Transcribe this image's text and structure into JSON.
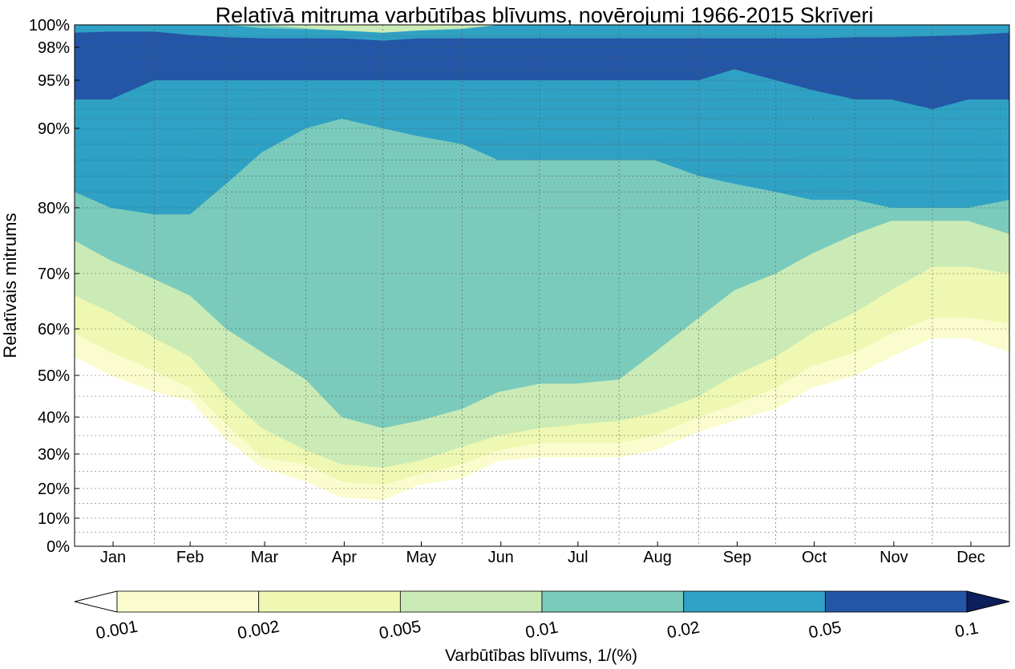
{
  "chart_data": {
    "type": "filled-contour",
    "title": "Relatīvā mitruma varbūtības blīvums, novērojumi 1966-2015 Skrīveri",
    "ylabel": "Relatīvais mitrums",
    "xlabel": "",
    "x_tick_labels": [
      "Jan",
      "Feb",
      "Mar",
      "Apr",
      "May",
      "Jun",
      "Jul",
      "Aug",
      "Sep",
      "Oct",
      "Nov",
      "Dec"
    ],
    "y_tick_labels": [
      "0%",
      "10%",
      "20%",
      "30%",
      "40%",
      "50%",
      "60%",
      "70%",
      "80%",
      "90%",
      "95%",
      "98%",
      "100%"
    ],
    "y_tick_values": [
      0,
      10,
      20,
      30,
      40,
      50,
      60,
      70,
      80,
      90,
      95,
      98,
      100
    ],
    "ylim": [
      0,
      100
    ],
    "y_scale": "nonlinear (stretched toward 100%)",
    "grid": true,
    "levels": [
      0.001,
      0.002,
      0.005,
      0.01,
      0.02,
      0.05,
      0.1
    ],
    "level_labels": [
      "0.001",
      "0.002",
      "0.005",
      "0.01",
      "0.02",
      "0.05",
      "0.1"
    ],
    "colors": [
      "#ffffcc",
      "#edf8b1",
      "#c7e9b4",
      "#7fcdbb",
      "#41b6c4",
      "#1d91c0",
      "#225ea8",
      "#0c2c84"
    ],
    "band_colors": {
      "lt_0.001": "#ffffff",
      "0.001_0.002": "#fafcce",
      "0.002_0.005": "#eef8b2",
      "0.005_0.01": "#cbebb6",
      "0.01_0.02": "#7bcbbc",
      "0.02_0.05": "#2fa1c4",
      "0.05_0.1": "#2356a6",
      "gt_0.1": "#0c1f5c"
    },
    "boundaries_rh_by_day": {
      "day": [
        1,
        15,
        32,
        46,
        60,
        74,
        91,
        105,
        121,
        135,
        152,
        166,
        182,
        196,
        213,
        227,
        244,
        258,
        274,
        288,
        305,
        319,
        335,
        349,
        365
      ],
      "p001_lower": [
        54,
        50,
        46,
        44,
        34,
        26,
        22,
        17,
        16,
        21,
        23,
        28,
        29,
        29,
        29,
        31,
        36,
        39,
        42,
        47,
        50,
        54,
        58,
        58,
        55
      ],
      "p002_lower": [
        59,
        55,
        51,
        47,
        38,
        29,
        27,
        22,
        21,
        24,
        27,
        31,
        33,
        33,
        33,
        35,
        40,
        43,
        47,
        52,
        55,
        59,
        62,
        62,
        61
      ],
      "p005_lower": [
        66,
        63,
        58,
        54,
        45,
        37,
        31,
        27,
        26,
        28,
        32,
        35,
        37,
        38,
        39,
        41,
        45,
        50,
        54,
        59,
        63,
        67,
        71,
        71,
        70
      ],
      "p01_lower": [
        75,
        72,
        69,
        66,
        60,
        55,
        49,
        40,
        37,
        39,
        42,
        46,
        48,
        48,
        49,
        55,
        62,
        67,
        70,
        73,
        76,
        78,
        78,
        78,
        76
      ],
      "p02_lower": [
        82,
        80,
        79,
        79,
        83,
        87,
        90,
        91,
        90,
        89,
        88,
        86,
        86,
        86,
        86,
        86,
        84,
        83,
        82,
        81,
        81,
        80,
        80,
        80,
        81
      ],
      "p05_lower": [
        93,
        93,
        95,
        95,
        95,
        95,
        95,
        95,
        95,
        95,
        95,
        95,
        95,
        95,
        95,
        95,
        95,
        96,
        95,
        94,
        93,
        93,
        92,
        93,
        93
      ],
      "p1_lower": [
        100,
        100,
        100,
        100,
        100,
        100,
        100,
        100,
        100,
        100,
        100,
        100,
        100,
        100,
        100,
        100,
        100,
        99.8,
        99.7,
        99.6,
        99.5,
        99.4,
        99.4,
        99.5,
        99.8
      ],
      "p05_upper": [
        99.6,
        99.6,
        99.7,
        100,
        100,
        100,
        100,
        100,
        100,
        100,
        100,
        100,
        100,
        100,
        100,
        100,
        100,
        100,
        100,
        100,
        100,
        100,
        100,
        100,
        100
      ],
      "p02_upper": [
        99.3,
        99.4,
        99.4,
        99.1,
        98.9,
        98.8,
        98.8,
        98.8,
        98.6,
        98.8,
        98.8,
        98.8,
        98.8,
        98.8,
        98.8,
        98.8,
        98.8,
        98.8,
        98.8,
        98.8,
        98.9,
        98.9,
        99.0,
        99.1,
        99.3
      ],
      "p01_upper": [
        100,
        100,
        100,
        100,
        100,
        99.7,
        99.6,
        99.5,
        99.4,
        99.5,
        99.6,
        100,
        100,
        100,
        100,
        100,
        100,
        100,
        100,
        100,
        100,
        100,
        100,
        100,
        100
      ],
      "p005_upper": [
        100,
        100,
        100,
        100,
        100,
        100,
        99.7,
        99.5,
        99.3,
        99.5,
        99.7,
        100,
        100,
        100,
        100,
        100,
        100,
        100,
        100,
        100,
        100,
        100,
        100,
        100,
        100
      ]
    },
    "colorbar": {
      "label": "Varbūtības blīvums, 1/(%)",
      "orientation": "horizontal",
      "extend": "both",
      "ticks": [
        "0.001",
        "0.002",
        "0.005",
        "0.01",
        "0.02",
        "0.05",
        "0.1"
      ]
    }
  }
}
